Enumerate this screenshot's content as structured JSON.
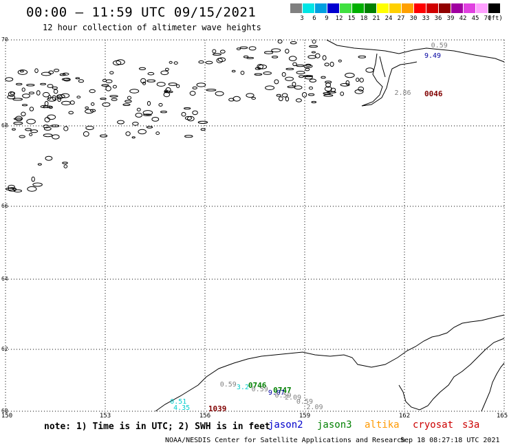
{
  "header": {
    "title": "00:00 – 11:59 UTC 09/15/2021",
    "subtitle": "12 hour collection of altimeter wave heights"
  },
  "color_scale": {
    "ticks": [
      "3",
      "6",
      "9",
      "12",
      "15",
      "18",
      "21",
      "24",
      "27",
      "30",
      "33",
      "36",
      "39",
      "42",
      "45",
      "70",
      "(ft)"
    ],
    "colors": [
      "#808080",
      "#00e5e5",
      "#00a0e0",
      "#0000d0",
      "#40e040",
      "#00b000",
      "#008000",
      "#ffff00",
      "#ffd000",
      "#ffa000",
      "#ff0000",
      "#d00000",
      "#900000",
      "#a000a0",
      "#e040e0",
      "#ffa0ff",
      "#000000"
    ]
  },
  "map": {
    "lat_labels": [
      "70",
      "68",
      "66",
      "64",
      "62",
      "60"
    ],
    "lon_labels": [
      "150",
      "153",
      "156",
      "159",
      "162",
      "165"
    ],
    "observations": [
      {
        "text": "0.59",
        "color": "#808080",
        "big": false,
        "lon": 162.8,
        "lat": 69.85
      },
      {
        "text": "9.49",
        "color": "#0000a0",
        "big": false,
        "lon": 162.6,
        "lat": 69.62
      },
      {
        "text": "2.86",
        "color": "#808080",
        "big": false,
        "lon": 161.7,
        "lat": 68.75
      },
      {
        "text": "0046",
        "color": "#800000",
        "big": true,
        "lon": 162.6,
        "lat": 68.75
      },
      {
        "text": "0.59",
        "color": "#808080",
        "big": false,
        "lon": 156.45,
        "lat": 60.85
      },
      {
        "text": "0746",
        "color": "#008000",
        "big": true,
        "lon": 157.3,
        "lat": 60.85
      },
      {
        "text": "3.2",
        "color": "#00cccc",
        "big": false,
        "lon": 156.95,
        "lat": 60.75
      },
      {
        "text": "0.59",
        "color": "#808080",
        "big": false,
        "lon": 157.4,
        "lat": 60.68
      },
      {
        "text": "0747",
        "color": "#008000",
        "big": true,
        "lon": 158.05,
        "lat": 60.68
      },
      {
        "text": "9.07",
        "color": "#0000a0",
        "big": false,
        "lon": 157.9,
        "lat": 60.58
      },
      {
        "text": "0.59",
        "color": "#808080",
        "big": false,
        "lon": 158.1,
        "lat": 60.5
      },
      {
        "text": "2.09",
        "color": "#808080",
        "big": false,
        "lon": 158.4,
        "lat": 60.42
      },
      {
        "text": "0.59",
        "color": "#808080",
        "big": false,
        "lon": 158.75,
        "lat": 60.3
      },
      {
        "text": "2.09",
        "color": "#808080",
        "big": false,
        "lon": 159.05,
        "lat": 60.12
      },
      {
        "text": "0.51",
        "color": "#00cccc",
        "big": false,
        "lon": 154.95,
        "lat": 60.3
      },
      {
        "text": "4.35",
        "color": "#00cccc",
        "big": false,
        "lon": 155.05,
        "lat": 60.1
      },
      {
        "text": "1039",
        "color": "#800000",
        "big": true,
        "lon": 156.1,
        "lat": 60.1
      }
    ]
  },
  "footer": {
    "note": "note: 1) Time is in UTC; 2) SWH is in feet",
    "satellites": [
      {
        "name": "jason2",
        "color": "#0000cc"
      },
      {
        "name": "jason3",
        "color": "#008000"
      },
      {
        "name": "altika",
        "color": "#ff9900"
      },
      {
        "name": "cryosat",
        "color": "#cc0000"
      },
      {
        "name": "s3a",
        "color": "#cc0000"
      }
    ],
    "credit": "NOAA/NESDIS Center for Satellite Applications and Research",
    "timestamp": "Sep 18 08:27:18 UTC 2021"
  }
}
